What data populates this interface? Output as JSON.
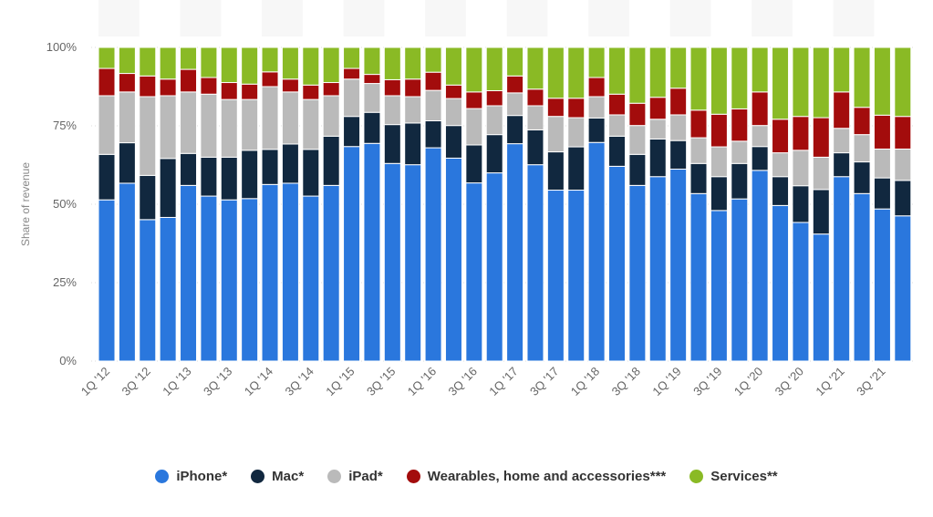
{
  "chart_data": {
    "type": "bar",
    "stacked": true,
    "normalized": true,
    "title": "",
    "xlabel": "",
    "ylabel": "Share of revenue",
    "ylim": [
      0,
      100
    ],
    "yticks": [
      "0%",
      "25%",
      "50%",
      "75%",
      "100%"
    ],
    "legend_position": "bottom",
    "categories": [
      "1Q '12",
      "2Q '12",
      "3Q '12",
      "4Q '12",
      "1Q '13",
      "2Q '13",
      "3Q '13",
      "4Q '13",
      "1Q '14",
      "2Q '14",
      "3Q '14",
      "4Q '14",
      "1Q '15",
      "2Q '15",
      "3Q '15",
      "4Q '15",
      "1Q '16",
      "2Q '16",
      "3Q '16",
      "4Q '16",
      "1Q '17",
      "2Q '17",
      "3Q '17",
      "4Q '17",
      "1Q '18",
      "2Q '18",
      "3Q '18",
      "4Q '18",
      "1Q '19",
      "2Q '19",
      "3Q '19",
      "4Q '19",
      "1Q '20",
      "2Q '20",
      "3Q '20",
      "4Q '20",
      "1Q '21",
      "2Q '21",
      "3Q '21",
      "4Q '21"
    ],
    "series": [
      {
        "name": "iPhone*",
        "color": "#2a77dd",
        "values": [
          51.4,
          56.7,
          45.1,
          45.8,
          56.0,
          52.6,
          51.4,
          51.8,
          56.3,
          56.7,
          52.6,
          56.0,
          68.4,
          69.4,
          63.0,
          62.6,
          68.0,
          64.7,
          56.8,
          60.0,
          69.3,
          62.6,
          54.5,
          54.5,
          69.7,
          62.1,
          56.0,
          58.8,
          61.2,
          53.4,
          48.0,
          51.7,
          60.8,
          49.6,
          44.2,
          40.5,
          58.8,
          53.4,
          48.5,
          46.3
        ]
      },
      {
        "name": "Mac*",
        "color": "#11283f",
        "values": [
          14.5,
          12.9,
          14.1,
          18.8,
          10.2,
          12.4,
          13.6,
          15.4,
          11.2,
          12.5,
          14.9,
          15.7,
          9.6,
          9.9,
          12.4,
          13.3,
          8.6,
          10.4,
          12.1,
          12.2,
          9.0,
          11.1,
          12.2,
          13.8,
          7.8,
          9.6,
          9.9,
          12.0,
          9.1,
          9.6,
          10.8,
          11.3,
          7.6,
          9.2,
          11.7,
          14.2,
          7.6,
          10.1,
          9.9,
          11.3
        ]
      },
      {
        "name": "iPad*",
        "color": "#bababa",
        "values": [
          18.7,
          16.2,
          25.1,
          20.0,
          19.6,
          20.1,
          18.4,
          16.2,
          20.0,
          16.6,
          15.9,
          12.9,
          11.9,
          9.2,
          9.2,
          8.4,
          9.7,
          8.6,
          11.6,
          9.2,
          7.2,
          7.7,
          11.3,
          9.3,
          6.8,
          6.8,
          9.2,
          6.3,
          8.2,
          8.2,
          9.5,
          7.1,
          6.7,
          7.6,
          11.3,
          10.3,
          7.8,
          8.7,
          9.2,
          10.0
        ]
      },
      {
        "name": "Wearables, home and accessories***",
        "color": "#a30c0c",
        "values": [
          8.7,
          5.9,
          6.6,
          5.3,
          7.2,
          5.3,
          5.4,
          4.9,
          4.7,
          4.1,
          4.6,
          4.2,
          3.4,
          2.9,
          5.1,
          5.6,
          5.8,
          4.3,
          5.3,
          4.8,
          5.4,
          5.3,
          5.8,
          6.2,
          6.1,
          6.6,
          7.1,
          7.0,
          8.5,
          8.8,
          10.4,
          10.3,
          10.7,
          10.7,
          10.8,
          12.6,
          11.6,
          8.7,
          10.8,
          10.4
        ]
      },
      {
        "name": "Services**",
        "color": "#8aba25",
        "values": [
          6.7,
          8.3,
          9.1,
          10.1,
          7.0,
          9.6,
          11.2,
          11.7,
          7.8,
          10.1,
          12.0,
          11.2,
          6.7,
          8.6,
          10.3,
          10.1,
          7.9,
          12.0,
          14.2,
          13.8,
          9.1,
          13.3,
          16.2,
          16.2,
          9.6,
          14.9,
          17.8,
          15.9,
          13.0,
          20.0,
          21.3,
          19.6,
          14.2,
          22.9,
          22.0,
          22.4,
          14.2,
          19.1,
          21.6,
          22.0
        ]
      }
    ]
  }
}
